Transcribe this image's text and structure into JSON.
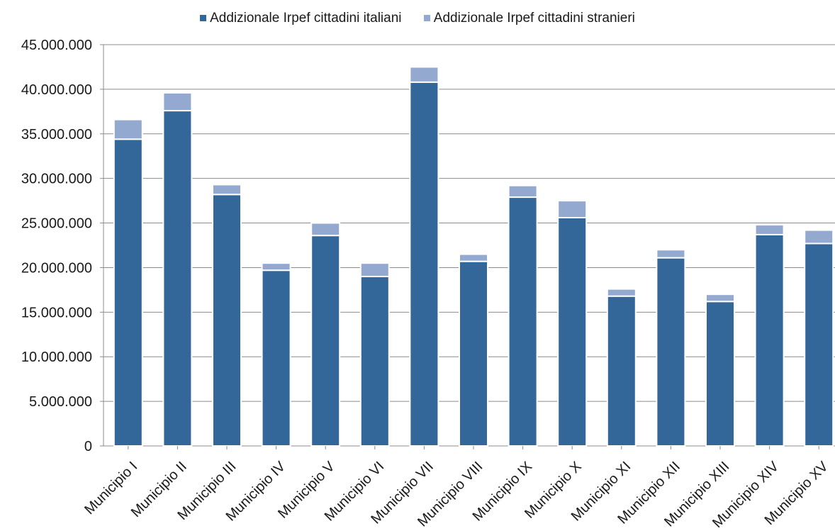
{
  "chart_data": {
    "type": "bar",
    "stacked": true,
    "title": "",
    "xlabel": "",
    "ylabel": "",
    "ylim": [
      0,
      45000000
    ],
    "yticks": [
      "0",
      "5.000.000",
      "10.000.000",
      "15.000.000",
      "20.000.000",
      "25.000.000",
      "30.000.000",
      "35.000.000",
      "40.000.000",
      "45.000.000"
    ],
    "grid": true,
    "legend_position": "top",
    "categories": [
      "Municipio I",
      "Municipio II",
      "Municipio III",
      "Municipio IV",
      "Municipio V",
      "Municipio VI",
      "Municipio VII",
      "Municipio VIII",
      "Municipio IX",
      "Municipio X",
      "Municipio XI",
      "Municipio XII",
      "Municipio XIII",
      "Municipio XIV",
      "Municipio XV"
    ],
    "series": [
      {
        "name": "Addizionale Irpef cittadini italiani",
        "color": "#336699",
        "values": [
          34400000,
          37600000,
          28200000,
          19700000,
          23600000,
          19000000,
          40800000,
          20700000,
          27900000,
          25600000,
          16800000,
          21100000,
          16200000,
          23700000,
          22700000
        ]
      },
      {
        "name": "Addizionale Irpef cittadini stranieri",
        "color": "#94A9CF",
        "values": [
          2200000,
          2000000,
          1100000,
          800000,
          1400000,
          1500000,
          1700000,
          800000,
          1300000,
          1900000,
          800000,
          900000,
          800000,
          1100000,
          1500000
        ]
      }
    ]
  }
}
